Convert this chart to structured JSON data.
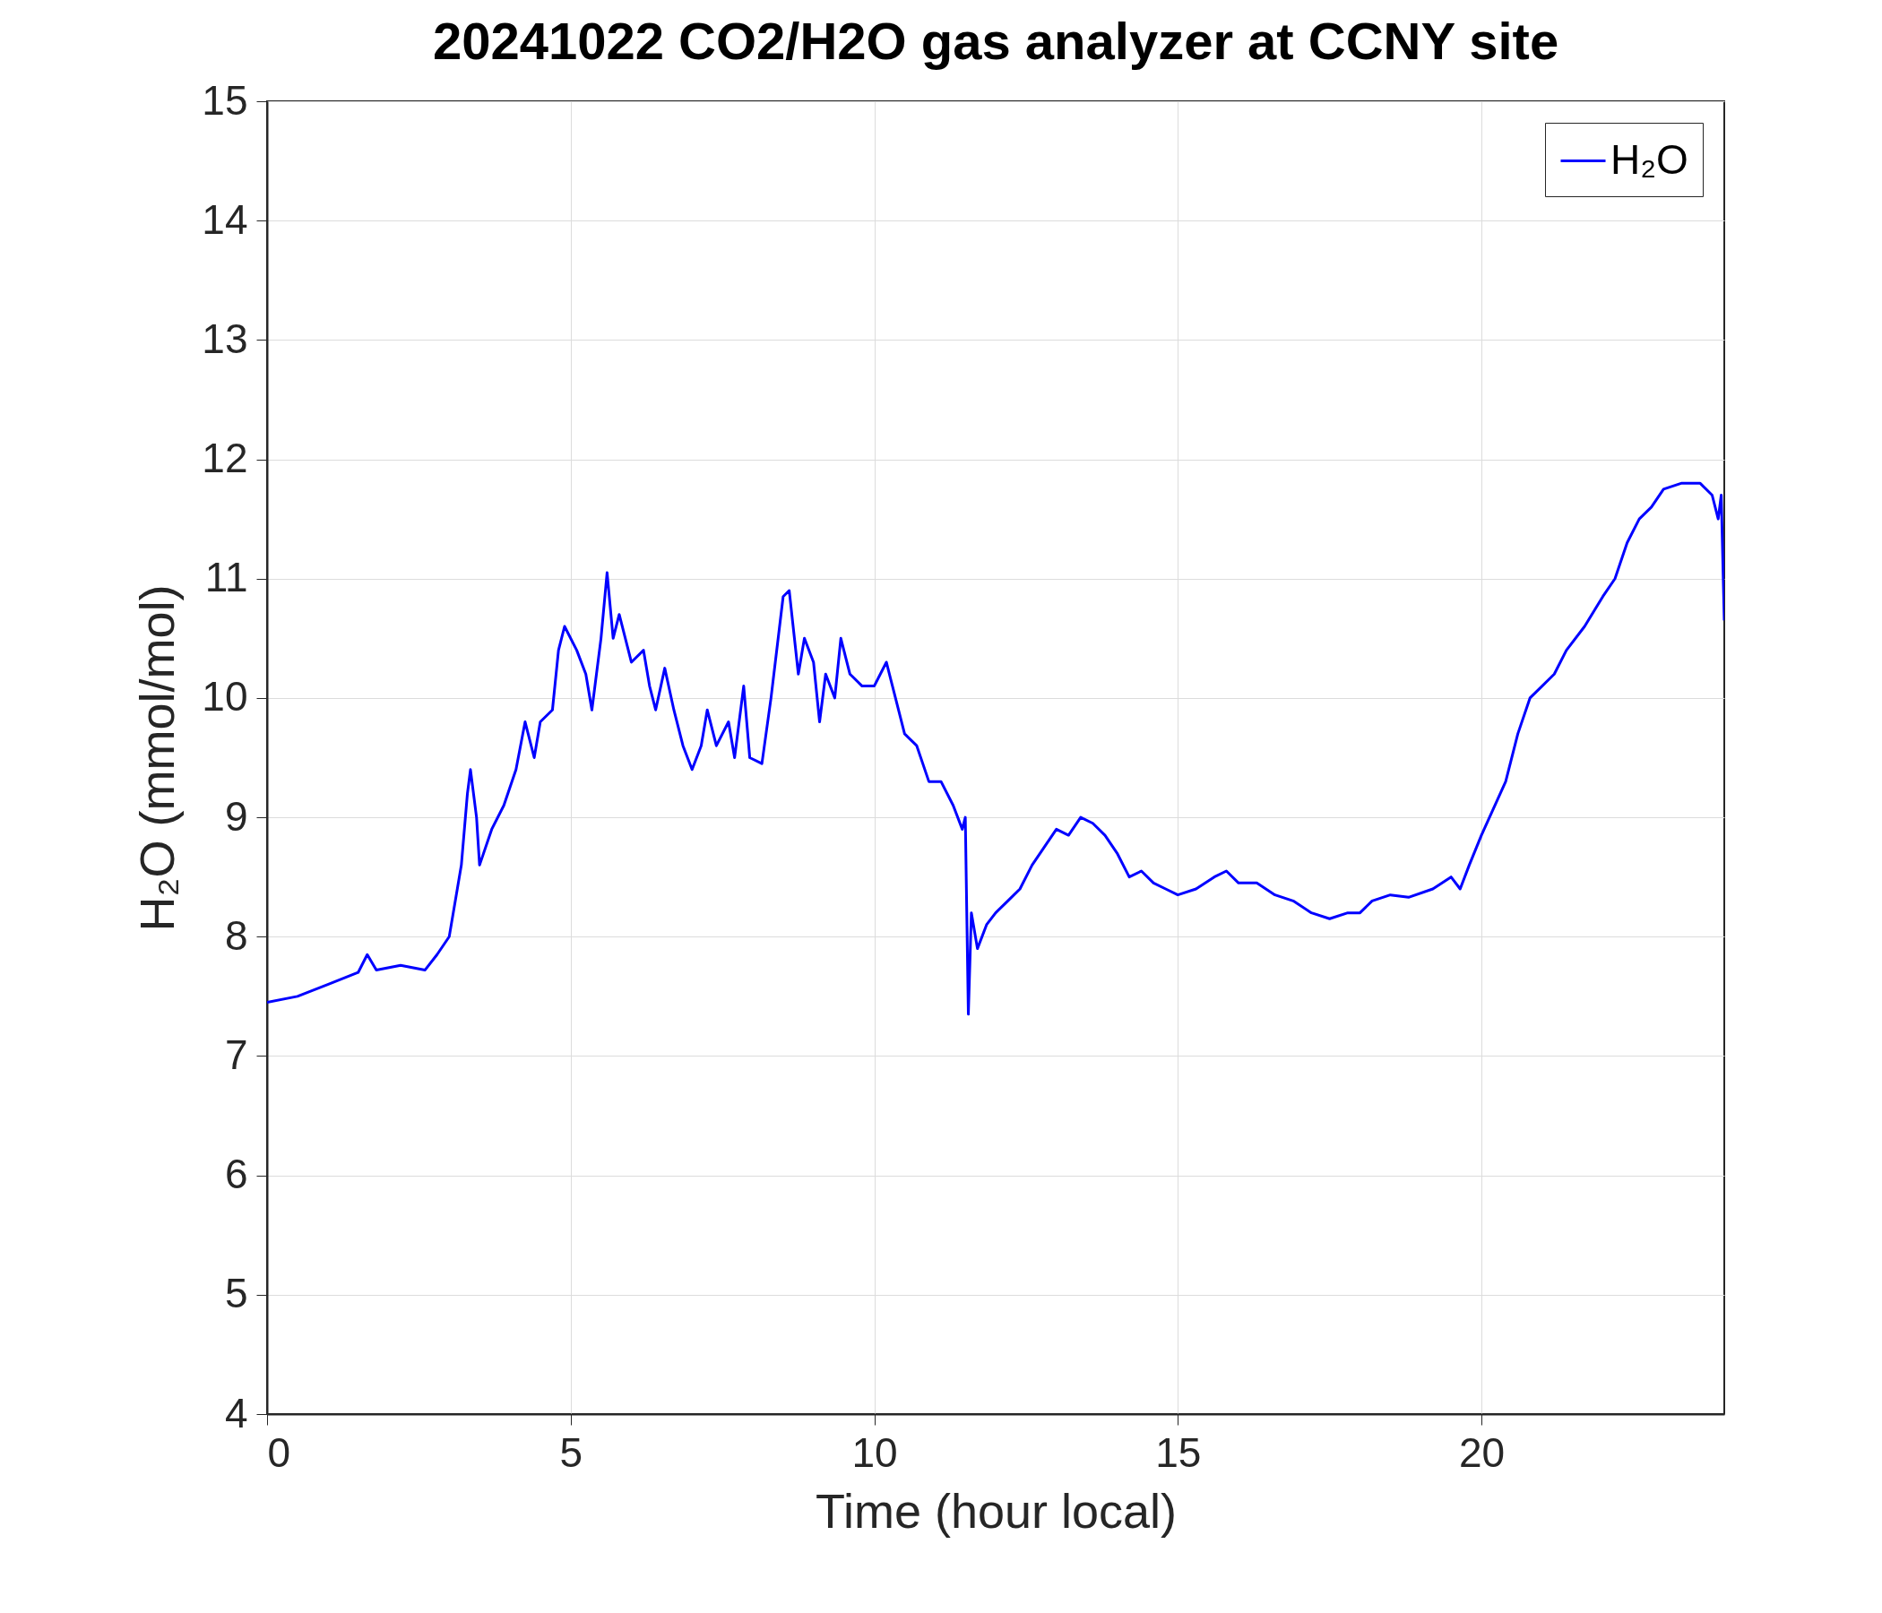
{
  "chart_data": {
    "type": "line",
    "title": "20241022 CO2/H2O gas analyzer at CCNY site",
    "xlabel": "Time (hour local)",
    "ylabel": "H₂O (mmol/mol)",
    "x": [
      0,
      0.5,
      1,
      1.5,
      1.65,
      1.8,
      2.2,
      2.6,
      2.8,
      3,
      3.2,
      3.3,
      3.35,
      3.45,
      3.5,
      3.7,
      3.9,
      4.1,
      4.25,
      4.4,
      4.5,
      4.7,
      4.8,
      4.9,
      5.1,
      5.25,
      5.35,
      5.5,
      5.6,
      5.7,
      5.8,
      6,
      6.2,
      6.3,
      6.4,
      6.55,
      6.7,
      6.85,
      7,
      7.15,
      7.25,
      7.4,
      7.6,
      7.7,
      7.85,
      7.95,
      8.15,
      8.3,
      8.5,
      8.6,
      8.75,
      8.85,
      9,
      9.1,
      9.2,
      9.35,
      9.45,
      9.6,
      9.8,
      10,
      10.2,
      10.35,
      10.5,
      10.7,
      10.9,
      11.1,
      11.3,
      11.45,
      11.5,
      11.55,
      11.6,
      11.7,
      11.85,
      12,
      12.2,
      12.4,
      12.6,
      12.8,
      13,
      13.2,
      13.4,
      13.6,
      13.8,
      14,
      14.2,
      14.4,
      14.6,
      14.8,
      15,
      15.3,
      15.6,
      15.8,
      16,
      16.3,
      16.6,
      16.9,
      17.2,
      17.5,
      17.8,
      18,
      18.2,
      18.5,
      18.8,
      19.2,
      19.5,
      19.65,
      19.8,
      20,
      20.4,
      20.6,
      20.8,
      21,
      21.2,
      21.4,
      21.7,
      22,
      22.2,
      22.4,
      22.6,
      22.8,
      23,
      23.3,
      23.6,
      23.8,
      23.9,
      23.95,
      24
    ],
    "series": [
      {
        "name": "H₂O",
        "color": "#0000ff",
        "values": [
          7.45,
          7.5,
          7.6,
          7.7,
          7.85,
          7.72,
          7.76,
          7.72,
          7.85,
          8.0,
          8.6,
          9.2,
          9.4,
          9.0,
          8.6,
          8.9,
          9.1,
          9.4,
          9.8,
          9.5,
          9.8,
          9.9,
          10.4,
          10.6,
          10.4,
          10.2,
          9.9,
          10.5,
          11.05,
          10.5,
          10.7,
          10.3,
          10.4,
          10.1,
          9.9,
          10.25,
          9.9,
          9.6,
          9.4,
          9.6,
          9.9,
          9.6,
          9.8,
          9.5,
          10.1,
          9.5,
          9.45,
          10.0,
          10.85,
          10.9,
          10.2,
          10.5,
          10.3,
          9.8,
          10.2,
          10.0,
          10.5,
          10.2,
          10.1,
          10.1,
          10.3,
          10.0,
          9.7,
          9.6,
          9.3,
          9.3,
          9.1,
          8.9,
          9.0,
          7.35,
          8.2,
          7.9,
          8.1,
          8.2,
          8.3,
          8.4,
          8.6,
          8.75,
          8.9,
          8.85,
          9.0,
          8.95,
          8.85,
          8.7,
          8.5,
          8.55,
          8.45,
          8.4,
          8.35,
          8.4,
          8.5,
          8.55,
          8.45,
          8.45,
          8.35,
          8.3,
          8.2,
          8.15,
          8.2,
          8.2,
          8.3,
          8.35,
          8.33,
          8.4,
          8.5,
          8.4,
          8.6,
          8.85,
          9.3,
          9.7,
          10.0,
          10.1,
          10.2,
          10.4,
          10.6,
          10.85,
          11.0,
          11.3,
          11.5,
          11.6,
          11.75,
          11.8,
          11.8,
          11.7,
          11.5,
          11.7,
          10.65
        ]
      }
    ],
    "xlim": [
      0,
      24
    ],
    "xticks": [
      0,
      5,
      10,
      15,
      20
    ],
    "ylim": [
      4,
      15
    ],
    "yticks": [
      4,
      5,
      6,
      7,
      8,
      9,
      10,
      11,
      12,
      13,
      14,
      15
    ],
    "grid": true,
    "legend": "top right",
    "line_style": "solid"
  }
}
